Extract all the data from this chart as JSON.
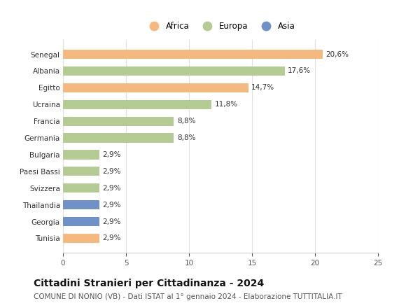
{
  "categories": [
    "Senegal",
    "Albania",
    "Egitto",
    "Ucraina",
    "Francia",
    "Germania",
    "Bulgaria",
    "Paesi Bassi",
    "Svizzera",
    "Thailandia",
    "Georgia",
    "Tunisia"
  ],
  "values": [
    20.6,
    17.6,
    14.7,
    11.8,
    8.8,
    8.8,
    2.9,
    2.9,
    2.9,
    2.9,
    2.9,
    2.9
  ],
  "labels": [
    "20,6%",
    "17,6%",
    "14,7%",
    "11,8%",
    "8,8%",
    "8,8%",
    "2,9%",
    "2,9%",
    "2,9%",
    "2,9%",
    "2,9%",
    "2,9%"
  ],
  "continent": [
    "Africa",
    "Europa",
    "Africa",
    "Europa",
    "Europa",
    "Europa",
    "Europa",
    "Europa",
    "Europa",
    "Asia",
    "Asia",
    "Africa"
  ],
  "colors": {
    "Africa": "#F5B97F",
    "Europa": "#B5CB94",
    "Asia": "#7090C8"
  },
  "title": "Cittadini Stranieri per Cittadinanza - 2024",
  "subtitle": "COMUNE DI NONIO (VB) - Dati ISTAT al 1° gennaio 2024 - Elaborazione TUTTITALIA.IT",
  "xlim": [
    0,
    25
  ],
  "xticks": [
    0,
    5,
    10,
    15,
    20,
    25
  ],
  "background_color": "#ffffff",
  "bar_height": 0.55,
  "title_fontsize": 10,
  "subtitle_fontsize": 7.5,
  "label_fontsize": 7.5,
  "tick_fontsize": 7.5,
  "legend_fontsize": 8.5
}
